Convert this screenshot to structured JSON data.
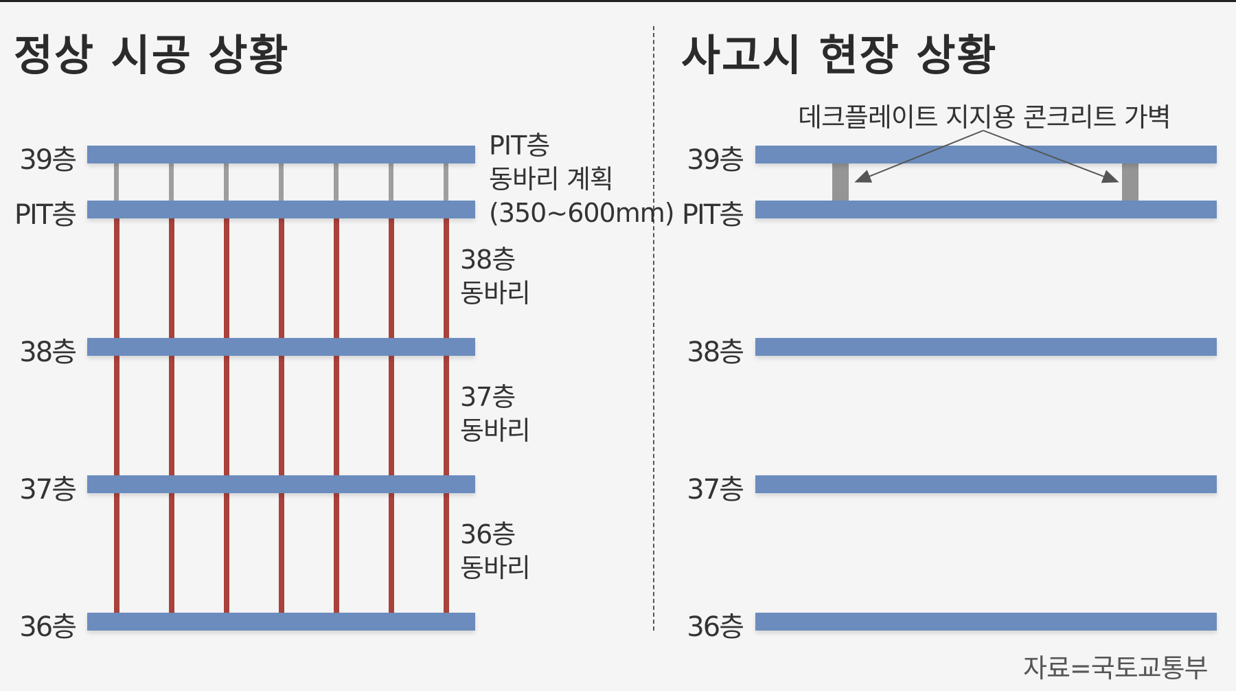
{
  "left_title": "정상 시공 상황",
  "right_title": "사고시 현장 상황",
  "floors": {
    "f39": "39층",
    "pit": "PIT층",
    "f38": "38층",
    "f37": "37층",
    "f36": "36층"
  },
  "notes": {
    "pit_shoring": [
      "PIT층",
      "동바리 계획",
      "(350~600mm)"
    ],
    "f38_shoring": [
      "38층",
      "동바리"
    ],
    "f37_shoring": [
      "37층",
      "동바리"
    ],
    "f36_shoring": [
      "36층",
      "동바리"
    ]
  },
  "callout": "데크플레이트 지지용 콘크리트 가벽",
  "source": "자료=국토교통부",
  "colors": {
    "slab": "#6b8cbd",
    "shoring": "#a9423b",
    "pit_shoring": "#9e9e9e",
    "wall": "#959595"
  }
}
